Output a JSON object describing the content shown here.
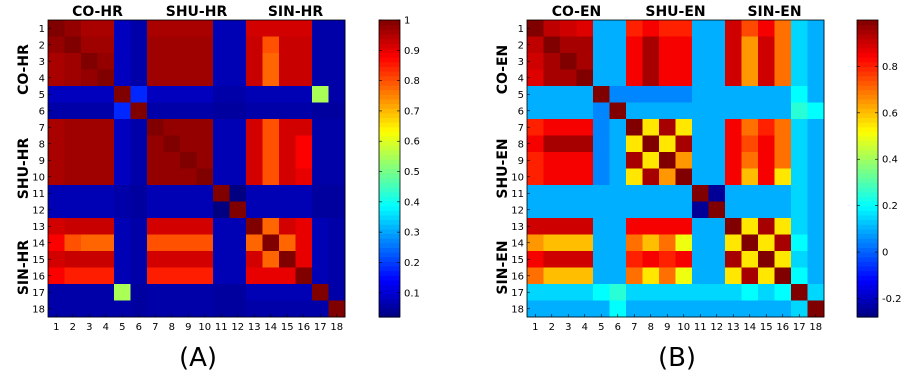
{
  "chart_data": [
    {
      "type": "heatmap",
      "panel_label": "(A)",
      "row_labels": [
        "1",
        "2",
        "3",
        "4",
        "5",
        "6",
        "7",
        "8",
        "9",
        "10",
        "11",
        "12",
        "13",
        "14",
        "15",
        "16",
        "17",
        "18"
      ],
      "col_labels": [
        "1",
        "2",
        "3",
        "4",
        "5",
        "6",
        "7",
        "8",
        "9",
        "10",
        "11",
        "12",
        "13",
        "14",
        "15",
        "16",
        "17",
        "18"
      ],
      "group_labels_top": [
        "CO-HR",
        "SHU-HR",
        "SIN-HR"
      ],
      "group_labels_left": [
        "CO-HR",
        "SHU-HR",
        "SIN-HR"
      ],
      "colorbar": {
        "min": 0.02,
        "max": 1,
        "ticks": [
          0.1,
          0.2,
          0.3,
          0.4,
          0.5,
          0.6,
          0.7,
          0.8,
          0.9,
          1
        ],
        "tick_labels": [
          "0.1",
          "0.2",
          "0.3",
          "0.4",
          "0.5",
          "0.6",
          "0.7",
          "0.8",
          "0.9",
          "1"
        ]
      },
      "values": [
        [
          1.0,
          0.98,
          0.96,
          0.96,
          0.08,
          0.06,
          0.96,
          0.96,
          0.96,
          0.96,
          0.07,
          0.07,
          0.92,
          0.92,
          0.92,
          0.92,
          0.06,
          0.06
        ],
        [
          0.98,
          1.0,
          0.97,
          0.97,
          0.08,
          0.06,
          0.97,
          0.97,
          0.97,
          0.97,
          0.07,
          0.07,
          0.93,
          0.8,
          0.93,
          0.93,
          0.06,
          0.06
        ],
        [
          0.96,
          0.97,
          1.0,
          0.98,
          0.08,
          0.06,
          0.97,
          0.97,
          0.97,
          0.97,
          0.07,
          0.07,
          0.93,
          0.78,
          0.93,
          0.93,
          0.06,
          0.06
        ],
        [
          0.96,
          0.97,
          0.98,
          1.0,
          0.08,
          0.06,
          0.97,
          0.97,
          0.97,
          0.97,
          0.07,
          0.07,
          0.93,
          0.78,
          0.93,
          0.93,
          0.06,
          0.06
        ],
        [
          0.08,
          0.08,
          0.08,
          0.08,
          1.0,
          0.18,
          0.08,
          0.08,
          0.08,
          0.08,
          0.06,
          0.06,
          0.07,
          0.07,
          0.07,
          0.07,
          0.55,
          0.06
        ],
        [
          0.06,
          0.06,
          0.06,
          0.06,
          0.18,
          1.0,
          0.06,
          0.06,
          0.06,
          0.06,
          0.05,
          0.05,
          0.06,
          0.06,
          0.06,
          0.06,
          0.05,
          0.05
        ],
        [
          0.96,
          0.97,
          0.97,
          0.97,
          0.08,
          0.06,
          1.0,
          0.98,
          0.98,
          0.98,
          0.07,
          0.07,
          0.92,
          0.8,
          0.92,
          0.92,
          0.06,
          0.06
        ],
        [
          0.96,
          0.97,
          0.97,
          0.97,
          0.08,
          0.06,
          0.98,
          1.0,
          0.98,
          0.98,
          0.07,
          0.07,
          0.92,
          0.8,
          0.92,
          0.88,
          0.06,
          0.06
        ],
        [
          0.96,
          0.97,
          0.97,
          0.97,
          0.08,
          0.06,
          0.98,
          0.98,
          1.0,
          0.98,
          0.07,
          0.07,
          0.92,
          0.8,
          0.92,
          0.88,
          0.06,
          0.06
        ],
        [
          0.96,
          0.97,
          0.97,
          0.97,
          0.08,
          0.06,
          0.98,
          0.98,
          0.98,
          1.0,
          0.07,
          0.07,
          0.92,
          0.8,
          0.92,
          0.9,
          0.06,
          0.06
        ],
        [
          0.07,
          0.07,
          0.07,
          0.07,
          0.06,
          0.05,
          0.07,
          0.07,
          0.07,
          0.07,
          1.0,
          0.02,
          0.07,
          0.07,
          0.07,
          0.07,
          0.05,
          0.05
        ],
        [
          0.07,
          0.07,
          0.07,
          0.07,
          0.06,
          0.05,
          0.07,
          0.07,
          0.07,
          0.07,
          0.02,
          1.0,
          0.07,
          0.07,
          0.07,
          0.07,
          0.05,
          0.05
        ],
        [
          0.92,
          0.93,
          0.93,
          0.93,
          0.07,
          0.06,
          0.92,
          0.92,
          0.92,
          0.92,
          0.07,
          0.07,
          1.0,
          0.78,
          0.92,
          0.9,
          0.07,
          0.06
        ],
        [
          0.88,
          0.8,
          0.78,
          0.78,
          0.07,
          0.06,
          0.8,
          0.8,
          0.8,
          0.8,
          0.07,
          0.07,
          0.78,
          1.0,
          0.78,
          0.9,
          0.07,
          0.06
        ],
        [
          0.92,
          0.93,
          0.93,
          0.93,
          0.07,
          0.06,
          0.92,
          0.92,
          0.92,
          0.92,
          0.07,
          0.07,
          0.92,
          0.78,
          1.0,
          0.9,
          0.07,
          0.06
        ],
        [
          0.88,
          0.85,
          0.85,
          0.85,
          0.07,
          0.06,
          0.85,
          0.85,
          0.85,
          0.85,
          0.07,
          0.07,
          0.9,
          0.9,
          0.9,
          1.0,
          0.07,
          0.06
        ],
        [
          0.06,
          0.06,
          0.06,
          0.06,
          0.55,
          0.05,
          0.06,
          0.06,
          0.06,
          0.06,
          0.05,
          0.05,
          0.07,
          0.07,
          0.07,
          0.07,
          1.0,
          0.06
        ],
        [
          0.06,
          0.06,
          0.06,
          0.06,
          0.06,
          0.05,
          0.06,
          0.06,
          0.06,
          0.06,
          0.05,
          0.05,
          0.06,
          0.06,
          0.06,
          0.06,
          0.06,
          1.0
        ]
      ]
    },
    {
      "type": "heatmap",
      "panel_label": "(B)",
      "row_labels": [
        "1",
        "2",
        "3",
        "4",
        "5",
        "6",
        "7",
        "8",
        "9",
        "10",
        "11",
        "12",
        "13",
        "14",
        "15",
        "16",
        "17",
        "18"
      ],
      "col_labels": [
        "1",
        "2",
        "3",
        "4",
        "5",
        "6",
        "7",
        "8",
        "9",
        "10",
        "11",
        "12",
        "13",
        "14",
        "15",
        "16",
        "17",
        "18"
      ],
      "group_labels_top": [
        "CO-EN",
        "SHU-EN",
        "SIN-EN"
      ],
      "group_labels_left": [
        "CO-EN",
        "SHU-EN",
        "SIN-EN"
      ],
      "colorbar": {
        "min": -0.28,
        "max": 1,
        "ticks": [
          -0.2,
          0,
          0.2,
          0.4,
          0.6,
          0.8
        ],
        "tick_labels": [
          "-0.2",
          "0",
          "0.2",
          "0.4",
          "0.6",
          "0.8"
        ]
      },
      "values": [
        [
          1.0,
          0.92,
          0.9,
          0.88,
          0.1,
          0.1,
          0.8,
          0.85,
          0.8,
          0.8,
          0.1,
          0.1,
          0.9,
          0.75,
          0.85,
          0.7,
          0.15,
          0.1
        ],
        [
          0.92,
          1.0,
          0.95,
          0.95,
          0.1,
          0.1,
          0.85,
          0.95,
          0.85,
          0.85,
          0.1,
          0.1,
          0.9,
          0.65,
          0.9,
          0.7,
          0.15,
          0.1
        ],
        [
          0.9,
          0.95,
          1.0,
          0.95,
          0.1,
          0.1,
          0.85,
          0.95,
          0.85,
          0.85,
          0.1,
          0.1,
          0.9,
          0.65,
          0.9,
          0.7,
          0.15,
          0.1
        ],
        [
          0.88,
          0.95,
          0.95,
          1.0,
          0.1,
          0.1,
          0.85,
          0.95,
          0.85,
          0.85,
          0.1,
          0.1,
          0.9,
          0.65,
          0.9,
          0.7,
          0.15,
          0.1
        ],
        [
          0.1,
          0.1,
          0.1,
          0.1,
          1.0,
          0.05,
          0.05,
          0.05,
          0.05,
          0.05,
          0.1,
          0.1,
          0.1,
          0.1,
          0.1,
          0.1,
          0.2,
          0.1
        ],
        [
          0.1,
          0.1,
          0.1,
          0.1,
          0.05,
          1.0,
          0.1,
          0.1,
          0.1,
          0.1,
          0.1,
          0.1,
          0.1,
          0.1,
          0.1,
          0.1,
          0.25,
          0.2
        ],
        [
          0.8,
          0.85,
          0.85,
          0.85,
          0.05,
          0.1,
          1.0,
          0.55,
          0.95,
          0.55,
          0.1,
          0.1,
          0.85,
          0.7,
          0.8,
          0.7,
          0.15,
          0.1
        ],
        [
          0.85,
          0.95,
          0.95,
          0.95,
          0.05,
          0.1,
          0.55,
          1.0,
          0.55,
          0.95,
          0.1,
          0.1,
          0.85,
          0.75,
          0.85,
          0.7,
          0.15,
          0.1
        ],
        [
          0.8,
          0.85,
          0.85,
          0.85,
          0.05,
          0.1,
          0.95,
          0.55,
          1.0,
          0.65,
          0.1,
          0.1,
          0.85,
          0.7,
          0.85,
          0.7,
          0.15,
          0.1
        ],
        [
          0.8,
          0.85,
          0.85,
          0.85,
          0.05,
          0.1,
          0.55,
          0.95,
          0.65,
          1.0,
          0.1,
          0.1,
          0.85,
          0.6,
          0.85,
          0.55,
          0.15,
          0.1
        ],
        [
          0.1,
          0.1,
          0.1,
          0.1,
          0.1,
          0.1,
          0.1,
          0.1,
          0.1,
          0.1,
          1.0,
          -0.25,
          0.1,
          0.1,
          0.1,
          0.1,
          0.15,
          0.1
        ],
        [
          0.1,
          0.1,
          0.1,
          0.1,
          0.1,
          0.1,
          0.1,
          0.1,
          0.1,
          0.1,
          -0.25,
          1.0,
          0.1,
          0.1,
          0.1,
          0.1,
          0.15,
          0.1
        ],
        [
          0.9,
          0.9,
          0.9,
          0.9,
          0.1,
          0.1,
          0.85,
          0.85,
          0.85,
          0.85,
          0.1,
          0.1,
          1.0,
          0.55,
          0.95,
          0.55,
          0.15,
          0.1
        ],
        [
          0.65,
          0.6,
          0.6,
          0.6,
          0.1,
          0.1,
          0.7,
          0.6,
          0.7,
          0.5,
          0.1,
          0.1,
          0.55,
          1.0,
          0.55,
          0.95,
          0.2,
          0.1
        ],
        [
          0.85,
          0.9,
          0.9,
          0.9,
          0.1,
          0.1,
          0.8,
          0.85,
          0.8,
          0.85,
          0.1,
          0.1,
          0.95,
          0.55,
          1.0,
          0.55,
          0.15,
          0.1
        ],
        [
          0.7,
          0.6,
          0.6,
          0.6,
          0.1,
          0.1,
          0.7,
          0.55,
          0.7,
          0.5,
          0.1,
          0.1,
          0.55,
          0.95,
          0.55,
          1.0,
          0.2,
          0.1
        ],
        [
          0.15,
          0.15,
          0.15,
          0.15,
          0.2,
          0.25,
          0.15,
          0.15,
          0.15,
          0.15,
          0.15,
          0.15,
          0.15,
          0.2,
          0.15,
          0.2,
          1.0,
          0.15
        ],
        [
          0.1,
          0.1,
          0.1,
          0.1,
          0.1,
          0.2,
          0.1,
          0.1,
          0.1,
          0.1,
          0.1,
          0.1,
          0.1,
          0.1,
          0.1,
          0.1,
          0.15,
          1.0
        ]
      ]
    }
  ]
}
